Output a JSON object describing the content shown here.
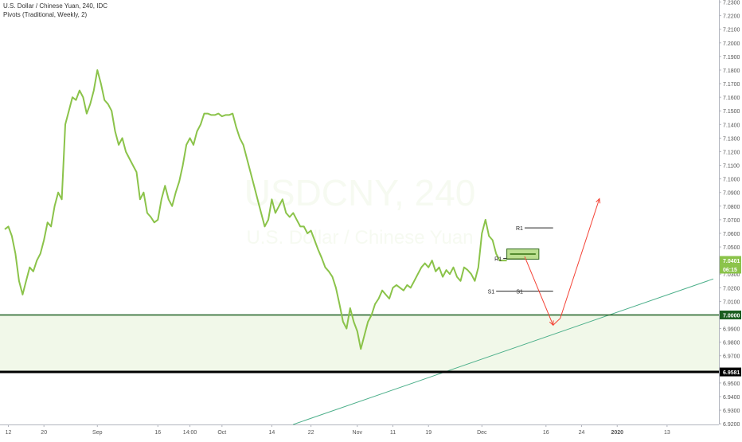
{
  "header": {
    "title": "U.S. Dollar / Chinese Yuan, 240, IDC",
    "indicator": "Pivots (Traditional, Weekly, 2)"
  },
  "watermark": {
    "symbol": "USDCNY, 240",
    "name": "U.S. Dollar / Chinese Yuan"
  },
  "colors": {
    "price": "#8bc34a",
    "zone_fill": "#f1f8e9",
    "support_line": "#1b5e20",
    "strong_line": "#000000",
    "trend_line": "#4caf8a",
    "projection": "#f44336",
    "axis_text": "#555555"
  },
  "chart_data": {
    "type": "line",
    "ylim": [
      6.9195,
      7.2315
    ],
    "yticks": [
      "6.9200",
      "6.9300",
      "6.9400",
      "6.9500",
      "6.9600",
      "6.9700",
      "6.9800",
      "6.9900",
      "7.0000",
      "7.0100",
      "7.0200",
      "7.0300",
      "7.0400",
      "7.0500",
      "7.0600",
      "7.0700",
      "7.0800",
      "7.0900",
      "7.1000",
      "7.1100",
      "7.1200",
      "7.1300",
      "7.1400",
      "7.1500",
      "7.1600",
      "7.1700",
      "7.1800",
      "7.1900",
      "7.2000",
      "7.2100",
      "7.2200",
      "7.2300"
    ],
    "xticks": [
      {
        "label": "12",
        "i": 1
      },
      {
        "label": "20",
        "i": 11
      },
      {
        "label": "Sep",
        "i": 26
      },
      {
        "label": "16",
        "i": 43
      },
      {
        "label": "14:00",
        "i": 52
      },
      {
        "label": "Oct",
        "i": 61
      },
      {
        "label": "14",
        "i": 75
      },
      {
        "label": "22",
        "i": 86
      },
      {
        "label": "Nov",
        "i": 99
      },
      {
        "label": "11",
        "i": 109
      },
      {
        "label": "19",
        "i": 119
      },
      {
        "label": "Dec",
        "i": 134
      },
      {
        "label": "16",
        "i": 152
      },
      {
        "label": "24",
        "i": 162
      },
      {
        "label": "2020",
        "i": 172
      },
      {
        "label": "13",
        "i": 186
      }
    ],
    "x_max_index": 199,
    "series": [
      {
        "values": [
          7.063,
          7.065,
          7.058,
          7.045,
          7.025,
          7.015,
          7.025,
          7.035,
          7.032,
          7.04,
          7.045,
          7.055,
          7.068,
          7.065,
          7.08,
          7.09,
          7.085,
          7.14,
          7.15,
          7.16,
          7.158,
          7.165,
          7.16,
          7.148,
          7.155,
          7.165,
          7.18,
          7.17,
          7.158,
          7.155,
          7.15,
          7.135,
          7.125,
          7.13,
          7.12,
          7.115,
          7.11,
          7.105,
          7.085,
          7.09,
          7.075,
          7.072,
          7.068,
          7.07,
          7.085,
          7.095,
          7.085,
          7.08,
          7.09,
          7.098,
          7.11,
          7.125,
          7.13,
          7.125,
          7.135,
          7.14,
          7.148,
          7.148,
          7.147,
          7.147,
          7.148,
          7.146,
          7.147,
          7.147,
          7.148,
          7.138,
          7.13,
          7.125,
          7.115,
          7.105,
          7.095,
          7.085,
          7.075,
          7.065,
          7.07,
          7.085,
          7.075,
          7.08,
          7.085,
          7.075,
          7.072,
          7.075,
          7.07,
          7.065,
          7.065,
          7.06,
          7.062,
          7.055,
          7.048,
          7.042,
          7.035,
          7.032,
          7.028,
          7.02,
          7.008,
          6.995,
          6.99,
          7.005,
          6.995,
          6.988,
          6.975,
          6.985,
          6.995,
          7.0,
          7.008,
          7.012,
          7.018,
          7.015,
          7.012,
          7.02,
          7.022,
          7.02,
          7.018,
          7.022,
          7.02,
          7.025,
          7.03,
          7.035,
          7.038,
          7.035,
          7.04,
          7.032,
          7.035,
          7.028,
          7.033,
          7.03,
          7.035,
          7.028,
          7.025,
          7.035,
          7.033,
          7.03,
          7.025,
          7.035,
          7.06,
          7.07,
          7.058,
          7.055,
          7.045,
          7.04,
          7.04,
          7.04
        ]
      }
    ],
    "pivots": [
      {
        "label": "R1",
        "value": 7.064
      },
      {
        "label": "R1",
        "value": 7.0415
      },
      {
        "label": "S1",
        "value": 7.0175
      },
      {
        "label": "S1",
        "value": 7.0175
      }
    ],
    "zone": {
      "top": 7.0,
      "bottom": 6.9581
    },
    "price_labels": [
      {
        "text": "7.0401",
        "value": 7.0401
      },
      {
        "text": "06:15",
        "value": 7.033
      },
      {
        "text": "7.0000",
        "value": 7.0
      },
      {
        "text": "6.9581",
        "value": 6.9581
      }
    ],
    "trend_line": [
      {
        "i": 81,
        "v": 6.9195
      },
      {
        "i": 199,
        "v": 7.0265
      }
    ],
    "target_box": {
      "i0": 141,
      "i1": 150,
      "v_top": 7.0485,
      "v_bottom": 7.041
    },
    "projection": [
      {
        "i": 146,
        "v": 7.043
      },
      {
        "i": 154,
        "v": 6.9925
      },
      {
        "i": 156,
        "v": 6.9975
      },
      {
        "i": 167,
        "v": 7.0855
      }
    ]
  }
}
